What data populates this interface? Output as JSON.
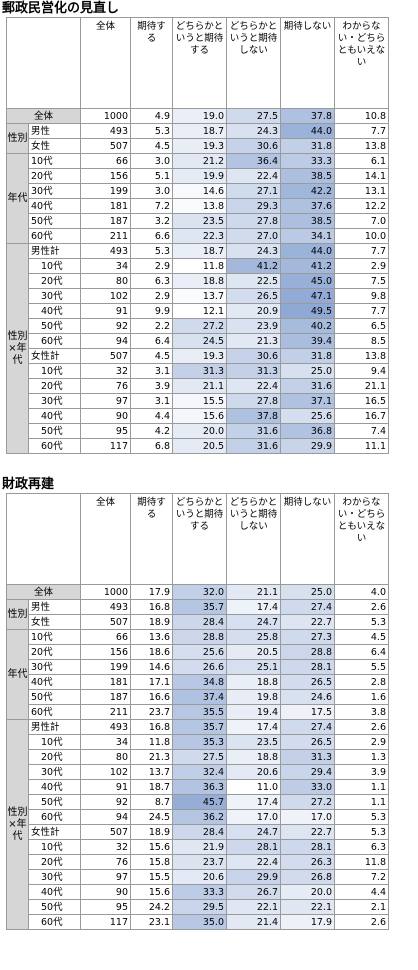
{
  "headers": [
    "全体",
    "期待する",
    "どちらかというと期待する",
    "どちらかというと期待しない",
    "期待しない",
    "わからない・どちらともいえない"
  ],
  "colors": {
    "low": "#ffffff",
    "high": "#8fa8d4",
    "group_bg": "#d6d6d6"
  },
  "sections": [
    {
      "title": "郵政民営化の見直し",
      "rows": [
        {
          "group": "",
          "label": "全体",
          "indent": false,
          "cells": [
            "1000",
            "4.9",
            "19.0",
            "27.5",
            "37.8",
            "10.8"
          ]
        },
        {
          "group": "性別",
          "label": "男性",
          "indent": false,
          "cells": [
            "493",
            "5.3",
            "18.7",
            "24.3",
            "44.0",
            "7.7"
          ]
        },
        {
          "group": "",
          "label": "女性",
          "indent": false,
          "cells": [
            "507",
            "4.5",
            "19.3",
            "30.6",
            "31.8",
            "13.8"
          ]
        },
        {
          "group": "年代",
          "label": "10代",
          "indent": false,
          "cells": [
            "66",
            "3.0",
            "21.2",
            "36.4",
            "33.3",
            "6.1"
          ]
        },
        {
          "group": "",
          "label": "20代",
          "indent": false,
          "cells": [
            "156",
            "5.1",
            "19.9",
            "22.4",
            "38.5",
            "14.1"
          ]
        },
        {
          "group": "",
          "label": "30代",
          "indent": false,
          "cells": [
            "199",
            "3.0",
            "14.6",
            "27.1",
            "42.2",
            "13.1"
          ]
        },
        {
          "group": "",
          "label": "40代",
          "indent": false,
          "cells": [
            "181",
            "7.2",
            "13.8",
            "29.3",
            "37.6",
            "12.2"
          ]
        },
        {
          "group": "",
          "label": "50代",
          "indent": false,
          "cells": [
            "187",
            "3.2",
            "23.5",
            "27.8",
            "38.5",
            "7.0"
          ]
        },
        {
          "group": "",
          "label": "60代",
          "indent": false,
          "cells": [
            "211",
            "6.6",
            "22.3",
            "27.0",
            "34.1",
            "10.0"
          ]
        },
        {
          "group": "性別×年代",
          "label": "男性計",
          "indent": false,
          "cells": [
            "493",
            "5.3",
            "18.7",
            "24.3",
            "44.0",
            "7.7"
          ]
        },
        {
          "group": "",
          "label": "10代",
          "indent": true,
          "cells": [
            "34",
            "2.9",
            "11.8",
            "41.2",
            "41.2",
            "2.9"
          ]
        },
        {
          "group": "",
          "label": "20代",
          "indent": true,
          "cells": [
            "80",
            "6.3",
            "18.8",
            "22.5",
            "45.0",
            "7.5"
          ]
        },
        {
          "group": "",
          "label": "30代",
          "indent": true,
          "cells": [
            "102",
            "2.9",
            "13.7",
            "26.5",
            "47.1",
            "9.8"
          ]
        },
        {
          "group": "",
          "label": "40代",
          "indent": true,
          "cells": [
            "91",
            "9.9",
            "12.1",
            "20.9",
            "49.5",
            "7.7"
          ]
        },
        {
          "group": "",
          "label": "50代",
          "indent": true,
          "cells": [
            "92",
            "2.2",
            "27.2",
            "23.9",
            "40.2",
            "6.5"
          ]
        },
        {
          "group": "",
          "label": "60代",
          "indent": true,
          "cells": [
            "94",
            "6.4",
            "24.5",
            "21.3",
            "39.4",
            "8.5"
          ]
        },
        {
          "group": "",
          "label": "女性計",
          "indent": false,
          "cells": [
            "507",
            "4.5",
            "19.3",
            "30.6",
            "31.8",
            "13.8"
          ]
        },
        {
          "group": "",
          "label": "10代",
          "indent": true,
          "cells": [
            "32",
            "3.1",
            "31.3",
            "31.3",
            "25.0",
            "9.4"
          ]
        },
        {
          "group": "",
          "label": "20代",
          "indent": true,
          "cells": [
            "76",
            "3.9",
            "21.1",
            "22.4",
            "31.6",
            "21.1"
          ]
        },
        {
          "group": "",
          "label": "30代",
          "indent": true,
          "cells": [
            "97",
            "3.1",
            "15.5",
            "27.8",
            "37.1",
            "16.5"
          ]
        },
        {
          "group": "",
          "label": "40代",
          "indent": true,
          "cells": [
            "90",
            "4.4",
            "15.6",
            "37.8",
            "25.6",
            "16.7"
          ]
        },
        {
          "group": "",
          "label": "50代",
          "indent": true,
          "cells": [
            "95",
            "4.2",
            "20.0",
            "31.6",
            "36.8",
            "7.4"
          ]
        },
        {
          "group": "",
          "label": "60代",
          "indent": true,
          "cells": [
            "117",
            "6.8",
            "20.5",
            "31.6",
            "29.9",
            "11.1"
          ]
        }
      ]
    },
    {
      "title": "財政再建",
      "rows": [
        {
          "group": "",
          "label": "全体",
          "indent": false,
          "cells": [
            "1000",
            "17.9",
            "32.0",
            "21.1",
            "25.0",
            "4.0"
          ]
        },
        {
          "group": "性別",
          "label": "男性",
          "indent": false,
          "cells": [
            "493",
            "16.8",
            "35.7",
            "17.4",
            "27.4",
            "2.6"
          ]
        },
        {
          "group": "",
          "label": "女性",
          "indent": false,
          "cells": [
            "507",
            "18.9",
            "28.4",
            "24.7",
            "22.7",
            "5.3"
          ]
        },
        {
          "group": "年代",
          "label": "10代",
          "indent": false,
          "cells": [
            "66",
            "13.6",
            "28.8",
            "25.8",
            "27.3",
            "4.5"
          ]
        },
        {
          "group": "",
          "label": "20代",
          "indent": false,
          "cells": [
            "156",
            "18.6",
            "25.6",
            "20.5",
            "28.8",
            "6.4"
          ]
        },
        {
          "group": "",
          "label": "30代",
          "indent": false,
          "cells": [
            "199",
            "14.6",
            "26.6",
            "25.1",
            "28.1",
            "5.5"
          ]
        },
        {
          "group": "",
          "label": "40代",
          "indent": false,
          "cells": [
            "181",
            "17.1",
            "34.8",
            "18.8",
            "26.5",
            "2.8"
          ]
        },
        {
          "group": "",
          "label": "50代",
          "indent": false,
          "cells": [
            "187",
            "16.6",
            "37.4",
            "19.8",
            "24.6",
            "1.6"
          ]
        },
        {
          "group": "",
          "label": "60代",
          "indent": false,
          "cells": [
            "211",
            "23.7",
            "35.5",
            "19.4",
            "17.5",
            "3.8"
          ]
        },
        {
          "group": "性別×年代",
          "label": "男性計",
          "indent": false,
          "cells": [
            "493",
            "16.8",
            "35.7",
            "17.4",
            "27.4",
            "2.6"
          ]
        },
        {
          "group": "",
          "label": "10代",
          "indent": true,
          "cells": [
            "34",
            "11.8",
            "35.3",
            "23.5",
            "26.5",
            "2.9"
          ]
        },
        {
          "group": "",
          "label": "20代",
          "indent": true,
          "cells": [
            "80",
            "21.3",
            "27.5",
            "18.8",
            "31.3",
            "1.3"
          ]
        },
        {
          "group": "",
          "label": "30代",
          "indent": true,
          "cells": [
            "102",
            "13.7",
            "32.4",
            "20.6",
            "29.4",
            "3.9"
          ]
        },
        {
          "group": "",
          "label": "40代",
          "indent": true,
          "cells": [
            "91",
            "18.7",
            "36.3",
            "11.0",
            "33.0",
            "1.1"
          ]
        },
        {
          "group": "",
          "label": "50代",
          "indent": true,
          "cells": [
            "92",
            "8.7",
            "45.7",
            "17.4",
            "27.2",
            "1.1"
          ]
        },
        {
          "group": "",
          "label": "60代",
          "indent": true,
          "cells": [
            "94",
            "24.5",
            "36.2",
            "17.0",
            "17.0",
            "5.3"
          ]
        },
        {
          "group": "",
          "label": "女性計",
          "indent": false,
          "cells": [
            "507",
            "18.9",
            "28.4",
            "24.7",
            "22.7",
            "5.3"
          ]
        },
        {
          "group": "",
          "label": "10代",
          "indent": true,
          "cells": [
            "32",
            "15.6",
            "21.9",
            "28.1",
            "28.1",
            "6.3"
          ]
        },
        {
          "group": "",
          "label": "20代",
          "indent": true,
          "cells": [
            "76",
            "15.8",
            "23.7",
            "22.4",
            "26.3",
            "11.8"
          ]
        },
        {
          "group": "",
          "label": "30代",
          "indent": true,
          "cells": [
            "97",
            "15.5",
            "20.6",
            "29.9",
            "26.8",
            "7.2"
          ]
        },
        {
          "group": "",
          "label": "40代",
          "indent": true,
          "cells": [
            "90",
            "15.6",
            "33.3",
            "26.7",
            "20.0",
            "4.4"
          ]
        },
        {
          "group": "",
          "label": "50代",
          "indent": true,
          "cells": [
            "95",
            "24.2",
            "29.5",
            "22.1",
            "22.1",
            "2.1"
          ]
        },
        {
          "group": "",
          "label": "60代",
          "indent": true,
          "cells": [
            "117",
            "23.1",
            "35.0",
            "21.4",
            "17.9",
            "2.6"
          ]
        }
      ]
    }
  ]
}
